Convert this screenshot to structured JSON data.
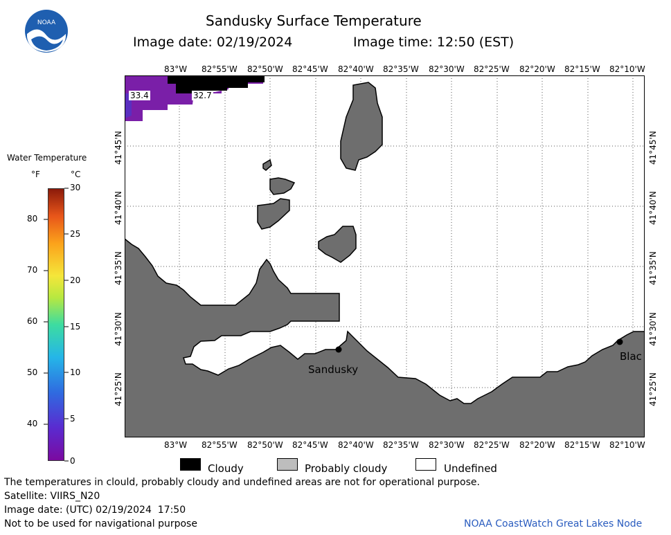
{
  "header": {
    "title": "Sandusky Surface Temperature",
    "image_date": "Image date: 02/19/2024",
    "image_time": "Image time: 12:50 (EST)",
    "logo_text": "NOAA"
  },
  "colorbar": {
    "title": "Water Temperature",
    "unit_f": "°F",
    "unit_c": "°C",
    "f_ticks": [
      "80",
      "70",
      "60",
      "50",
      "40"
    ],
    "c_ticks": [
      "30",
      "25",
      "20",
      "15",
      "10",
      "5",
      "0"
    ]
  },
  "map": {
    "lon_labels": [
      "83°W",
      "82°55'W",
      "82°50'W",
      "82°45'W",
      "82°40'W",
      "82°35'W",
      "82°30'W",
      "82°25'W",
      "82°20'W",
      "82°15'W",
      "82°10'W"
    ],
    "lat_labels": [
      "41°45'N",
      "41°40'N",
      "41°35'N",
      "41°30'N",
      "41°25'N"
    ],
    "temp_labels": [
      "33.4",
      "32.7"
    ],
    "places": [
      "Sandusky",
      "Blac"
    ],
    "colors": {
      "land": "#6e6e6e",
      "cloud": "#000000",
      "cold_water": "#7a1fa8"
    }
  },
  "legend": {
    "cloudy": "Cloudy",
    "probably_cloudy": "Probably cloudy",
    "undefined": "Undefined"
  },
  "footer": {
    "disclaimer": "The temperatures in clould, probably cloudy and undefined areas are not for operational purpose.",
    "satellite": "Satellite: VIIRS_N20",
    "utc_date": "Image date: (UTC) 02/19/2024  17:50",
    "nav_note": "Not to be used for navigational purpose",
    "credit": "NOAA CoastWatch Great Lakes Node"
  }
}
